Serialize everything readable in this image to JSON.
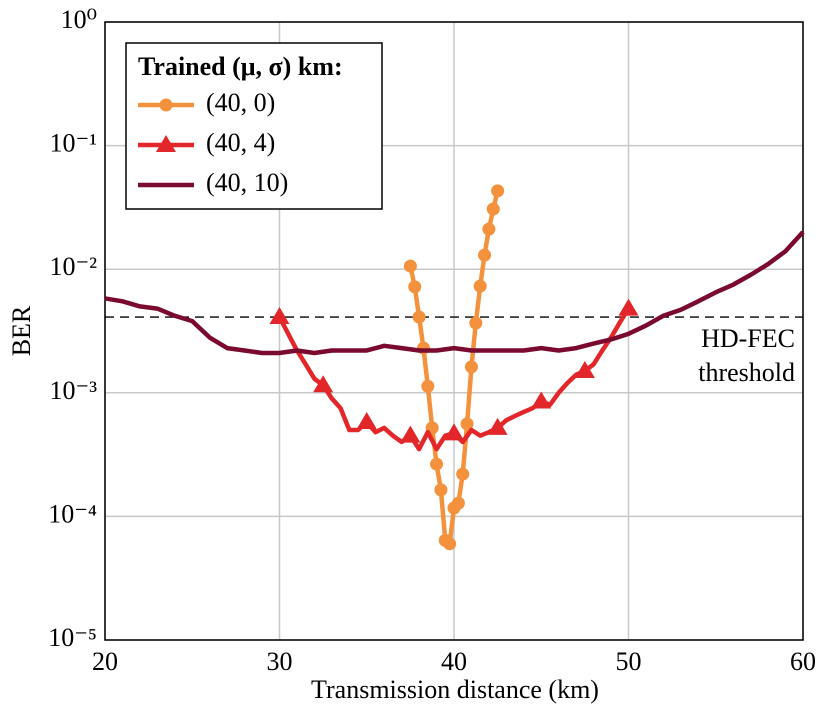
{
  "chart_data": {
    "type": "line",
    "log_y": true,
    "grid": true,
    "legend_corner": "upper left",
    "legend_title": "Trained (μ, σ) km:",
    "xlabel": "Transmission distance (km)",
    "ylabel": "BER",
    "xlim": [
      20,
      60
    ],
    "xticks": [
      20,
      30,
      40,
      50,
      60
    ],
    "ylim": [
      1e-05,
      1
    ],
    "yticks": [
      {
        "value": 1e-05,
        "label": "10⁻⁵"
      },
      {
        "value": 0.0001,
        "label": "10⁻⁴"
      },
      {
        "value": 0.001,
        "label": "10⁻³"
      },
      {
        "value": 0.01,
        "label": "10⁻²"
      },
      {
        "value": 0.1,
        "label": "10⁻¹"
      },
      {
        "value": 1,
        "label": "10⁰"
      }
    ],
    "threshold": {
      "value": 0.0041,
      "label_lines": [
        "HD-FEC",
        "threshold"
      ]
    },
    "series": [
      {
        "name": "(40, 0)",
        "color": "#f4913d",
        "marker": "circle",
        "mark_every": 1,
        "x": [
          37.5,
          37.75,
          38,
          38.25,
          38.5,
          38.75,
          39,
          39.25,
          39.5,
          39.75,
          40,
          40.25,
          40.5,
          40.75,
          41,
          41.25,
          41.5,
          41.75,
          42,
          42.25,
          42.5
        ],
        "values": [
          0.0106,
          0.0072,
          0.0041,
          0.0023,
          0.00113,
          0.00052,
          0.000265,
          0.000164,
          6.4e-05,
          6e-05,
          0.000117,
          0.000128,
          0.00022,
          0.00056,
          0.00162,
          0.00367,
          0.0073,
          0.013,
          0.0211,
          0.0307,
          0.043
        ]
      },
      {
        "name": "(40, 4)",
        "color": "#e3262a",
        "marker": "triangle",
        "mark_every": 5,
        "x": [
          30,
          30.5,
          31,
          31.5,
          32,
          32.5,
          33,
          33.5,
          34,
          34.5,
          35,
          35.5,
          36,
          36.5,
          37,
          37.5,
          38,
          38.5,
          39,
          39.5,
          40,
          40.5,
          41,
          41.5,
          42,
          42.5,
          43,
          43.5,
          44,
          44.5,
          45,
          45.5,
          46,
          46.5,
          47,
          47.5,
          48,
          48.5,
          49,
          49.5,
          50
        ],
        "values": [
          0.0041,
          0.003,
          0.0022,
          0.0017,
          0.0013,
          0.00115,
          0.0009,
          0.00075,
          0.0005,
          0.0005,
          0.00058,
          0.00048,
          0.00052,
          0.00045,
          0.0004,
          0.00045,
          0.00035,
          0.00048,
          0.00035,
          0.00045,
          0.00047,
          0.0004,
          0.0005,
          0.00045,
          0.00048,
          0.00052,
          0.0006,
          0.00065,
          0.0007,
          0.00075,
          0.00085,
          0.0008,
          0.001,
          0.0012,
          0.0014,
          0.0015,
          0.0017,
          0.0022,
          0.0028,
          0.0037,
          0.0048
        ]
      },
      {
        "name": "(40, 10)",
        "color": "#7a0a2e",
        "marker": "none",
        "mark_every": 0,
        "x": [
          20,
          21,
          22,
          23,
          24,
          25,
          26,
          27,
          28,
          29,
          30,
          31,
          32,
          33,
          34,
          35,
          36,
          37,
          38,
          39,
          40,
          41,
          42,
          43,
          44,
          45,
          46,
          47,
          48,
          49,
          50,
          51,
          52,
          53,
          54,
          55,
          56,
          57,
          58,
          59,
          60
        ],
        "values": [
          0.0058,
          0.0055,
          0.005,
          0.0048,
          0.0042,
          0.0038,
          0.0028,
          0.0023,
          0.0022,
          0.0021,
          0.0021,
          0.0022,
          0.0021,
          0.0022,
          0.0022,
          0.0022,
          0.0024,
          0.0023,
          0.0022,
          0.0022,
          0.0023,
          0.0022,
          0.0022,
          0.0022,
          0.0022,
          0.0023,
          0.0022,
          0.0023,
          0.0025,
          0.0027,
          0.003,
          0.0035,
          0.0042,
          0.0047,
          0.0055,
          0.0065,
          0.0075,
          0.009,
          0.011,
          0.014,
          0.02
        ]
      }
    ]
  }
}
